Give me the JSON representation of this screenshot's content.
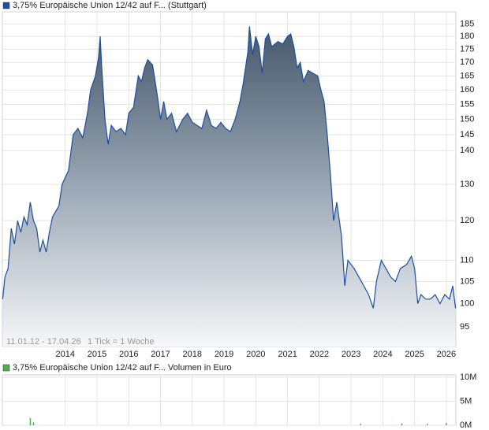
{
  "chart_data": [
    {
      "type": "area",
      "log_scale": true,
      "grid": true,
      "legend": "top-left",
      "annotations": [
        "11.01.12 - 17.04.26",
        "1 Tick = 1 Woche"
      ],
      "xlim": [
        2012.02,
        2026.3
      ],
      "xticks": [
        2014,
        2015,
        2016,
        2017,
        2018,
        2019,
        2020,
        2021,
        2022,
        2023,
        2024,
        2025,
        2026
      ],
      "ylim": [
        91,
        190
      ],
      "yticks": [
        95,
        100,
        105,
        110,
        120,
        130,
        140,
        145,
        150,
        155,
        160,
        165,
        170,
        175,
        180,
        185
      ],
      "x": [
        2012.03,
        2012.1,
        2012.2,
        2012.3,
        2012.4,
        2012.5,
        2012.6,
        2012.7,
        2012.8,
        2012.9,
        2013.0,
        2013.1,
        2013.2,
        2013.3,
        2013.4,
        2013.5,
        2013.6,
        2013.8,
        2013.9,
        2014.1,
        2014.25,
        2014.4,
        2014.55,
        2014.7,
        2014.8,
        2014.95,
        2015.05,
        2015.1,
        2015.15,
        2015.25,
        2015.35,
        2015.45,
        2015.6,
        2015.75,
        2015.9,
        2016.0,
        2016.15,
        2016.3,
        2016.4,
        2016.5,
        2016.6,
        2016.75,
        2016.9,
        2017.0,
        2017.1,
        2017.2,
        2017.35,
        2017.5,
        2017.7,
        2017.85,
        2018.0,
        2018.15,
        2018.3,
        2018.45,
        2018.6,
        2018.75,
        2018.9,
        2019.05,
        2019.2,
        2019.35,
        2019.5,
        2019.6,
        2019.75,
        2019.8,
        2019.9,
        2020.0,
        2020.1,
        2020.2,
        2020.3,
        2020.4,
        2020.5,
        2020.7,
        2020.85,
        2021.0,
        2021.1,
        2021.2,
        2021.3,
        2021.4,
        2021.5,
        2021.65,
        2021.8,
        2021.95,
        2022.05,
        2022.15,
        2022.25,
        2022.35,
        2022.45,
        2022.55,
        2022.7,
        2022.8,
        2022.9,
        2023.0,
        2023.1,
        2023.25,
        2023.4,
        2023.55,
        2023.7,
        2023.8,
        2023.95,
        2024.1,
        2024.25,
        2024.4,
        2024.55,
        2024.75,
        2024.9,
        2025.0,
        2025.1,
        2025.2,
        2025.35,
        2025.5,
        2025.65,
        2025.8,
        2025.95,
        2026.1,
        2026.2,
        2026.29
      ],
      "series": [
        {
          "name": "3,75% Europäische Union 12/42 auf F... (Stuttgart)",
          "color": "#1f4e9c",
          "values": [
            101,
            106,
            108,
            118,
            114,
            120,
            117,
            121,
            119,
            125,
            120,
            118,
            112,
            115,
            112,
            117,
            121,
            124,
            130,
            134,
            145,
            147,
            144,
            152,
            160,
            165,
            172,
            180,
            168,
            150,
            142,
            148,
            146,
            147,
            145,
            152,
            154,
            165,
            163,
            168,
            171,
            169,
            158,
            150,
            156,
            150,
            152,
            146,
            150,
            152,
            149,
            148,
            147,
            153,
            148,
            147,
            149,
            147,
            146,
            150,
            156,
            162,
            174,
            184,
            173,
            180,
            176,
            166,
            179,
            181,
            176,
            178,
            177,
            180,
            181,
            176,
            168,
            170,
            163,
            167,
            166,
            165,
            160,
            156,
            145,
            133,
            120,
            125,
            116,
            104,
            110,
            109,
            108,
            106,
            104,
            102,
            99,
            105,
            110,
            108,
            106,
            105,
            108,
            109,
            111,
            108,
            100,
            102,
            101,
            101,
            102,
            100,
            102,
            101,
            104,
            99
          ]
        }
      ]
    },
    {
      "type": "bar",
      "grid": true,
      "legend": "top-left",
      "xlim": [
        2012.02,
        2026.3
      ],
      "xticks": [
        2014,
        2015,
        2016,
        2017,
        2018,
        2019,
        2020,
        2021,
        2022,
        2023,
        2024,
        2025,
        2026
      ],
      "ylim": [
        0,
        10500000
      ],
      "yticks": [
        {
          "value": 0,
          "label": "0M"
        },
        {
          "value": 5000000,
          "label": "5M"
        },
        {
          "value": 10000000,
          "label": "10M"
        }
      ],
      "x": [
        2012.9,
        2013.0,
        2023.3,
        2024.6,
        2025.4,
        2026.0
      ],
      "series": [
        {
          "name": "3,75% Europäische Union 12/42 auf F... Volumen in Euro",
          "color": "#4caf50",
          "values": [
            1500000,
            600000,
            300000,
            400000,
            300000,
            500000
          ]
        }
      ]
    }
  ]
}
